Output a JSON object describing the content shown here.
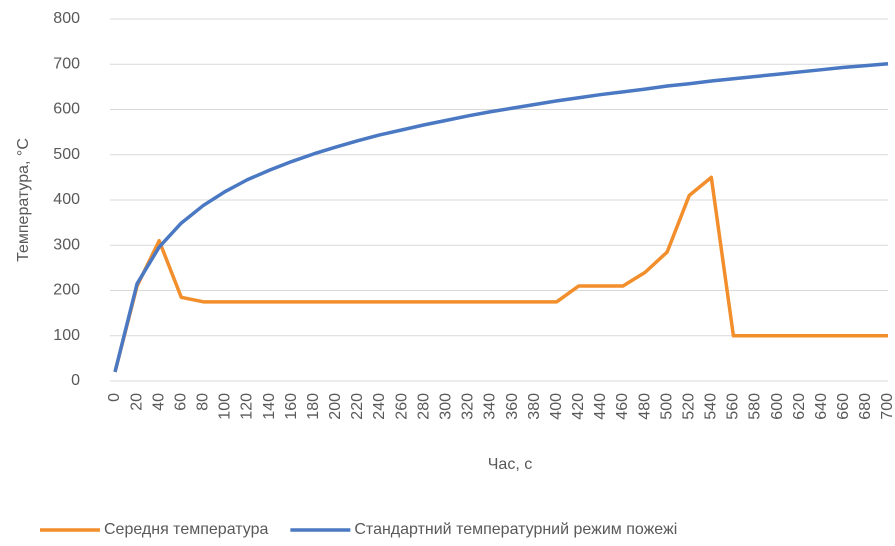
{
  "chart_data": {
    "type": "line",
    "x_label": "Час, с",
    "y_label": "Температура, °C",
    "x": [
      0,
      20,
      40,
      60,
      80,
      100,
      120,
      140,
      160,
      180,
      200,
      220,
      240,
      260,
      280,
      300,
      320,
      340,
      360,
      380,
      400,
      420,
      440,
      460,
      480,
      500,
      520,
      540,
      560,
      580,
      600,
      620,
      640,
      660,
      680,
      700
    ],
    "xlim": [
      0,
      700
    ],
    "ylim": [
      0,
      800
    ],
    "yticks": [
      0,
      100,
      200,
      300,
      400,
      500,
      600,
      700,
      800
    ],
    "grid": true,
    "legend": "bottom",
    "series": [
      {
        "name": "Середня температура",
        "color": "#f28e2b",
        "values": [
          20,
          210,
          310,
          185,
          175,
          175,
          175,
          175,
          175,
          175,
          175,
          175,
          175,
          175,
          175,
          175,
          175,
          175,
          175,
          175,
          175,
          210,
          210,
          210,
          240,
          285,
          410,
          450,
          100,
          100,
          100,
          100,
          100,
          100,
          100,
          100
        ]
      },
      {
        "name": "Стандартний температурний режим пожежі",
        "color": "#4a78c2",
        "values": [
          20,
          215,
          296,
          349,
          388,
          419,
          445,
          466,
          485,
          502,
          517,
          531,
          544,
          555,
          566,
          576,
          586,
          595,
          603,
          611,
          619,
          626,
          633,
          639,
          645,
          652,
          657,
          663,
          668,
          673,
          678,
          683,
          688,
          693,
          697,
          701
        ]
      }
    ]
  }
}
